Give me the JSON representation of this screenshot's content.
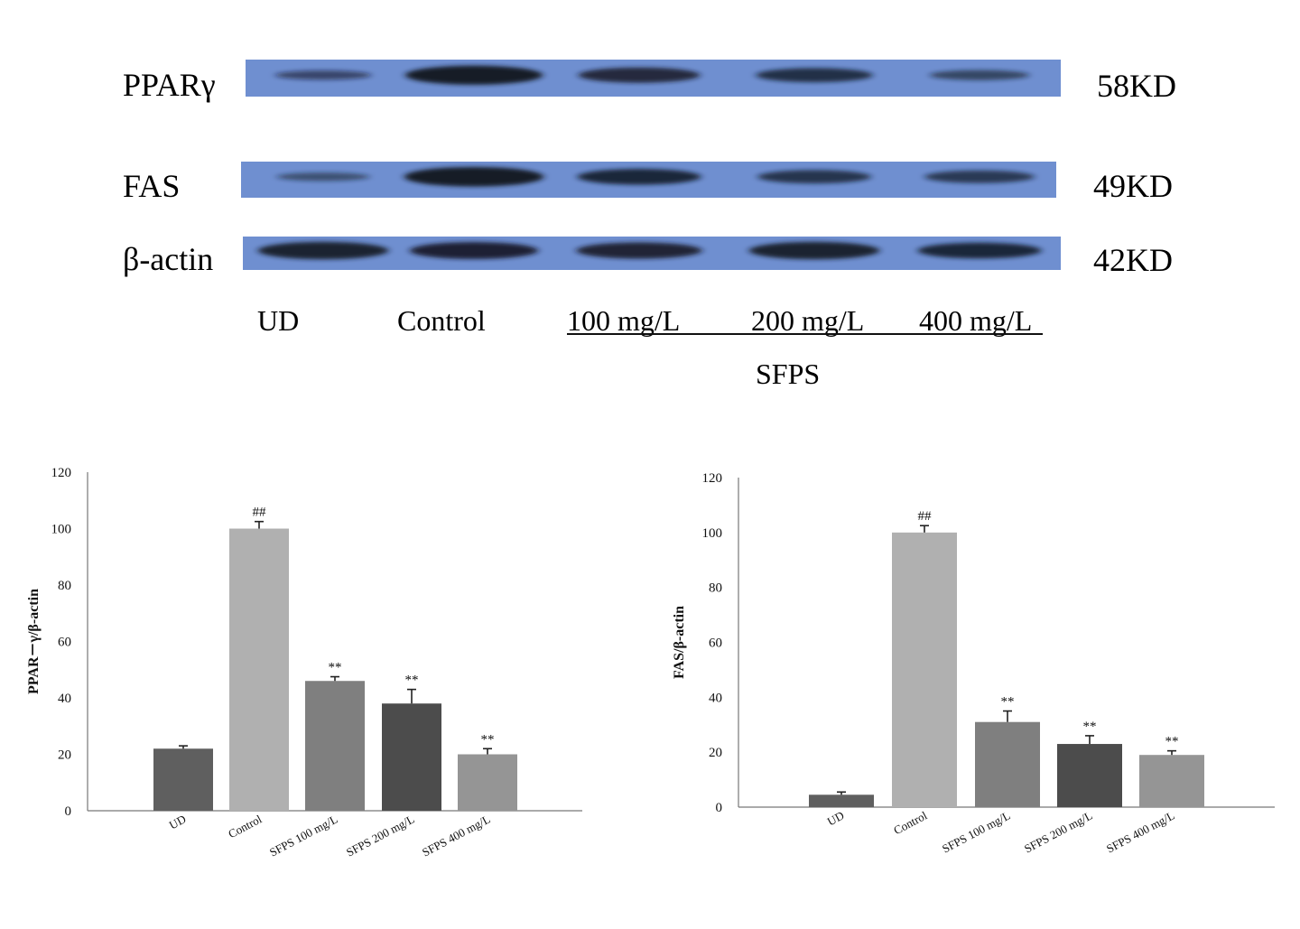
{
  "colors": {
    "membrane": "#6f8fd0",
    "band": "#141a26",
    "axis": "#777777",
    "bars": [
      "#5f5f5f",
      "#b0b0b0",
      "#7f7f7f",
      "#4c4c4c",
      "#959595"
    ]
  },
  "blot": {
    "rows": [
      {
        "name": "PPARγ",
        "size": "58KD",
        "intensities": [
          0.35,
          0.95,
          0.72,
          0.65,
          0.4
        ]
      },
      {
        "name": "FAS",
        "size": "49KD",
        "intensities": [
          0.3,
          0.98,
          0.75,
          0.6,
          0.55
        ]
      },
      {
        "name": "β-actin",
        "size": "42KD",
        "intensities": [
          0.85,
          0.82,
          0.78,
          0.85,
          0.75
        ]
      }
    ],
    "lanes": [
      "UD",
      "Control",
      "100 mg/L",
      "200 mg/L",
      "400 mg/L"
    ],
    "group_label": "SFPS"
  },
  "chart_data": [
    {
      "type": "bar",
      "ylabel": "PPAR－γ/β-actin",
      "ylim": [
        0,
        120
      ],
      "yticks": [
        0,
        20,
        40,
        60,
        80,
        100,
        120
      ],
      "categories": [
        "UD",
        "Control",
        "SFPS 100 mg/L",
        "SFPS 200 mg/L",
        "SFPS 400 mg/L"
      ],
      "values": [
        22,
        100,
        46,
        38,
        20
      ],
      "errors": [
        1,
        2.5,
        1.5,
        5,
        2
      ],
      "annotations": [
        "",
        "##",
        "**",
        "**",
        "**"
      ]
    },
    {
      "type": "bar",
      "ylabel": "FAS/β-actin",
      "ylim": [
        0,
        120
      ],
      "yticks": [
        0,
        20,
        40,
        60,
        80,
        100,
        120
      ],
      "categories": [
        "UD",
        "Control",
        "SFPS 100 mg/L",
        "SFPS 200 mg/L",
        "SFPS 400 mg/L"
      ],
      "values": [
        4.5,
        100,
        31,
        23,
        19
      ],
      "errors": [
        1,
        2.5,
        4,
        3,
        1.5
      ],
      "annotations": [
        "",
        "##",
        "**",
        "**",
        "**"
      ]
    }
  ]
}
